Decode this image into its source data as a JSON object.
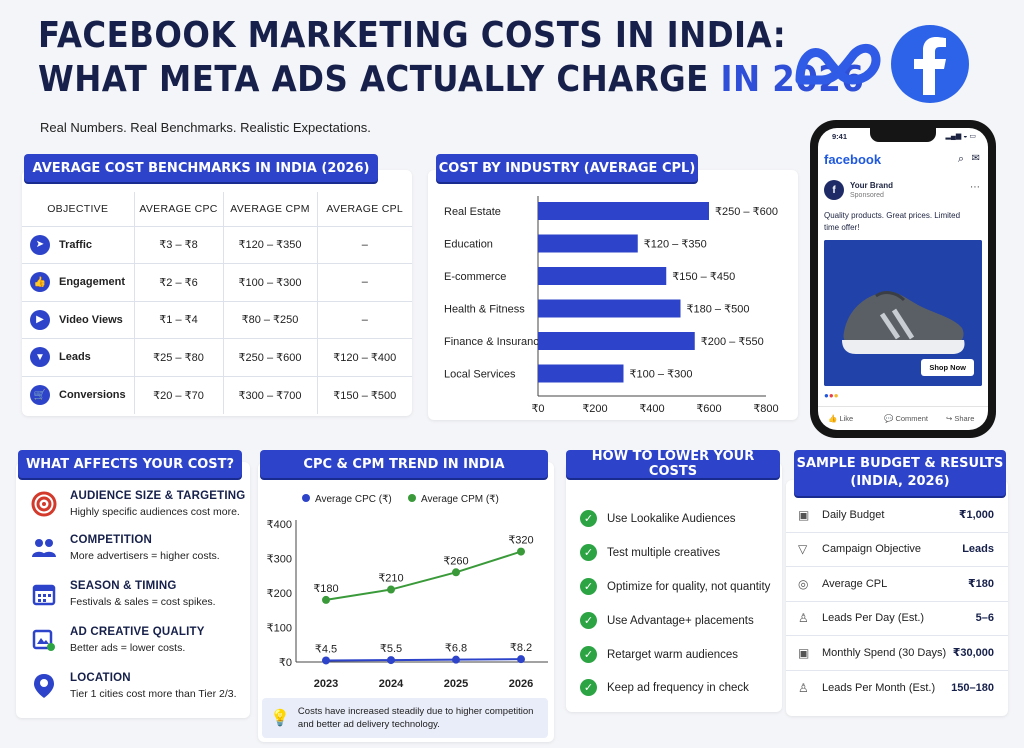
{
  "header": {
    "title_line1": "FACEBOOK MARKETING COSTS IN INDIA:",
    "title_line2_main": "WHAT META ADS ACTUALLY CHARGE",
    "title_line2_highlight": "IN 2026",
    "subtitle": "Real Numbers. Real Benchmarks. Realistic Expectations.",
    "logos": [
      "meta-logo",
      "facebook-logo"
    ]
  },
  "benchmarks": {
    "title": "AVERAGE COST BENCHMARKS IN INDIA (2026)",
    "columns": [
      "OBJECTIVE",
      "AVERAGE CPC",
      "AVERAGE CPM",
      "AVERAGE CPL"
    ],
    "rows": [
      {
        "objective": "Traffic",
        "icon": "cursor-icon",
        "cpc": "₹3 – ₹8",
        "cpm": "₹120 – ₹350",
        "cpl": "–"
      },
      {
        "objective": "Engagement",
        "icon": "thumbs-up-icon",
        "cpc": "₹2 – ₹6",
        "cpm": "₹100 – ₹300",
        "cpl": "–"
      },
      {
        "objective": "Video Views",
        "icon": "play-icon",
        "cpc": "₹1 – ₹4",
        "cpm": "₹80 – ₹250",
        "cpl": "–"
      },
      {
        "objective": "Leads",
        "icon": "funnel-icon",
        "cpc": "₹25 – ₹80",
        "cpm": "₹250 – ₹600",
        "cpl": "₹120 – ₹400"
      },
      {
        "objective": "Conversions",
        "icon": "cart-icon",
        "cpc": "₹20 – ₹70",
        "cpm": "₹300 – ₹700",
        "cpl": "₹150 – ₹500"
      }
    ]
  },
  "industry": {
    "title": "COST BY INDUSTRY (AVERAGE CPL)",
    "chart_data": {
      "type": "bar",
      "orientation": "horizontal",
      "categories": [
        "Real Estate",
        "Education",
        "E-commerce",
        "Health & Fitness",
        "Finance & Insurance",
        "Local Services"
      ],
      "series": [
        {
          "values": [
            600,
            350,
            450,
            500,
            550,
            300
          ]
        }
      ],
      "data_labels": [
        "₹250 – ₹600",
        "₹120 – ₹350",
        "₹150 – ₹450",
        "₹180 – ₹500",
        "₹200 – ₹550",
        "₹100 – ₹300"
      ],
      "xlim": [
        0,
        800
      ],
      "xticks": [
        "₹0",
        "₹200",
        "₹400",
        "₹600",
        "₹800"
      ],
      "color": "#2d43c9"
    }
  },
  "phone": {
    "time": "9:41",
    "app": "facebook",
    "brand": "Your Brand",
    "sponsored": "Sponsored",
    "post_text": "Quality products. Great prices. Limited time offer!",
    "cta": "Shop Now",
    "actions": [
      "Like",
      "Comment",
      "Share"
    ]
  },
  "affects": {
    "title": "WHAT AFFECTS YOUR COST?",
    "items": [
      {
        "heading": "AUDIENCE SIZE & TARGETING",
        "text": "Highly specific audiences cost more.",
        "icon": "target-icon"
      },
      {
        "heading": "COMPETITION",
        "text": "More advertisers = higher costs.",
        "icon": "people-icon"
      },
      {
        "heading": "SEASON & TIMING",
        "text": "Festivals & sales = cost spikes.",
        "icon": "calendar-icon"
      },
      {
        "heading": "AD CREATIVE QUALITY",
        "text": "Better ads = lower costs.",
        "icon": "creative-icon"
      },
      {
        "heading": "LOCATION",
        "text": "Tier 1 cities cost more than Tier 2/3.",
        "icon": "location-pin-icon"
      }
    ]
  },
  "trend": {
    "title": "CPC & CPM TREND IN INDIA",
    "note": "Costs have increased steadily due to higher competition and better ad delivery technology.",
    "chart_data": {
      "type": "line",
      "x": [
        "2023",
        "2024",
        "2025",
        "2026"
      ],
      "series": [
        {
          "name": "Average CPC (₹)",
          "values": [
            4.5,
            5.5,
            6.8,
            8.2
          ],
          "labels": [
            "₹4.5",
            "₹5.5",
            "₹6.8",
            "₹8.2"
          ],
          "color": "#2d43c9"
        },
        {
          "name": "Average CPM (₹)",
          "values": [
            180,
            210,
            260,
            320
          ],
          "labels": [
            "₹180",
            "₹210",
            "₹260",
            "₹320"
          ],
          "color": "#3a9a3a"
        }
      ],
      "ylim": [
        0,
        400
      ],
      "yticks": [
        "₹0",
        "₹100",
        "₹200",
        "₹300",
        "₹400"
      ],
      "legend": "top"
    }
  },
  "tips": {
    "title": "HOW TO LOWER YOUR COSTS",
    "items": [
      "Use Lookalike Audiences",
      "Test multiple creatives",
      "Optimize for quality, not quantity",
      "Use Advantage+ placements",
      "Retarget warm audiences",
      "Keep ad frequency in check"
    ]
  },
  "budget": {
    "title_line1": "SAMPLE BUDGET & RESULTS",
    "title_line2": "(INDIA, 2026)",
    "rows": [
      {
        "label": "Daily Budget",
        "value": "₹1,000",
        "icon": "wallet-icon"
      },
      {
        "label": "Campaign Objective",
        "value": "Leads",
        "icon": "funnel-icon"
      },
      {
        "label": "Average CPL",
        "value": "₹180",
        "icon": "coin-icon"
      },
      {
        "label": "Leads Per Day (Est.)",
        "value": "5–6",
        "icon": "person-icon"
      },
      {
        "label": "Monthly Spend (30 Days)",
        "value": "₹30,000",
        "icon": "wallet-icon"
      },
      {
        "label": "Leads Per Month (Est.)",
        "value": "150–180",
        "icon": "person-icon"
      }
    ]
  }
}
